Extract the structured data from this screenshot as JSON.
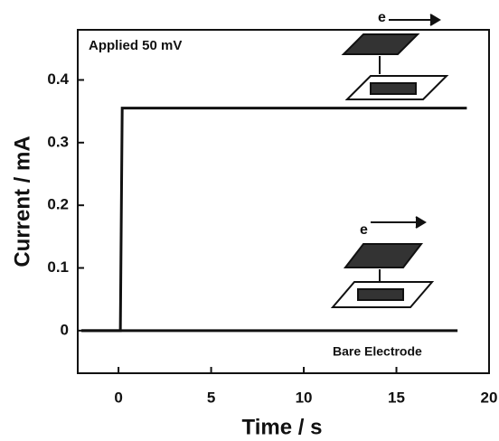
{
  "chart_data": {
    "type": "line",
    "x_label": "Time / s",
    "y_label": "Current / mA",
    "annotations": [
      "Applied 50 mV",
      "Bare Electrode",
      "e",
      "e"
    ],
    "series": [
      {
        "color": "#111111",
        "x": [
          -2,
          0.1,
          0.2,
          18.8
        ],
        "values": [
          0,
          0,
          0.355,
          0.355
        ]
      },
      {
        "color": "#111111",
        "x": [
          -2,
          18.3
        ],
        "values": [
          0,
          0
        ]
      }
    ],
    "xlim": [
      -2.2,
      20
    ],
    "xticks": [
      0,
      5,
      10,
      15,
      20
    ],
    "ylim": [
      -0.068,
      0.48
    ],
    "yticks": [
      0,
      0.1,
      0.2,
      0.3,
      0.4
    ]
  }
}
